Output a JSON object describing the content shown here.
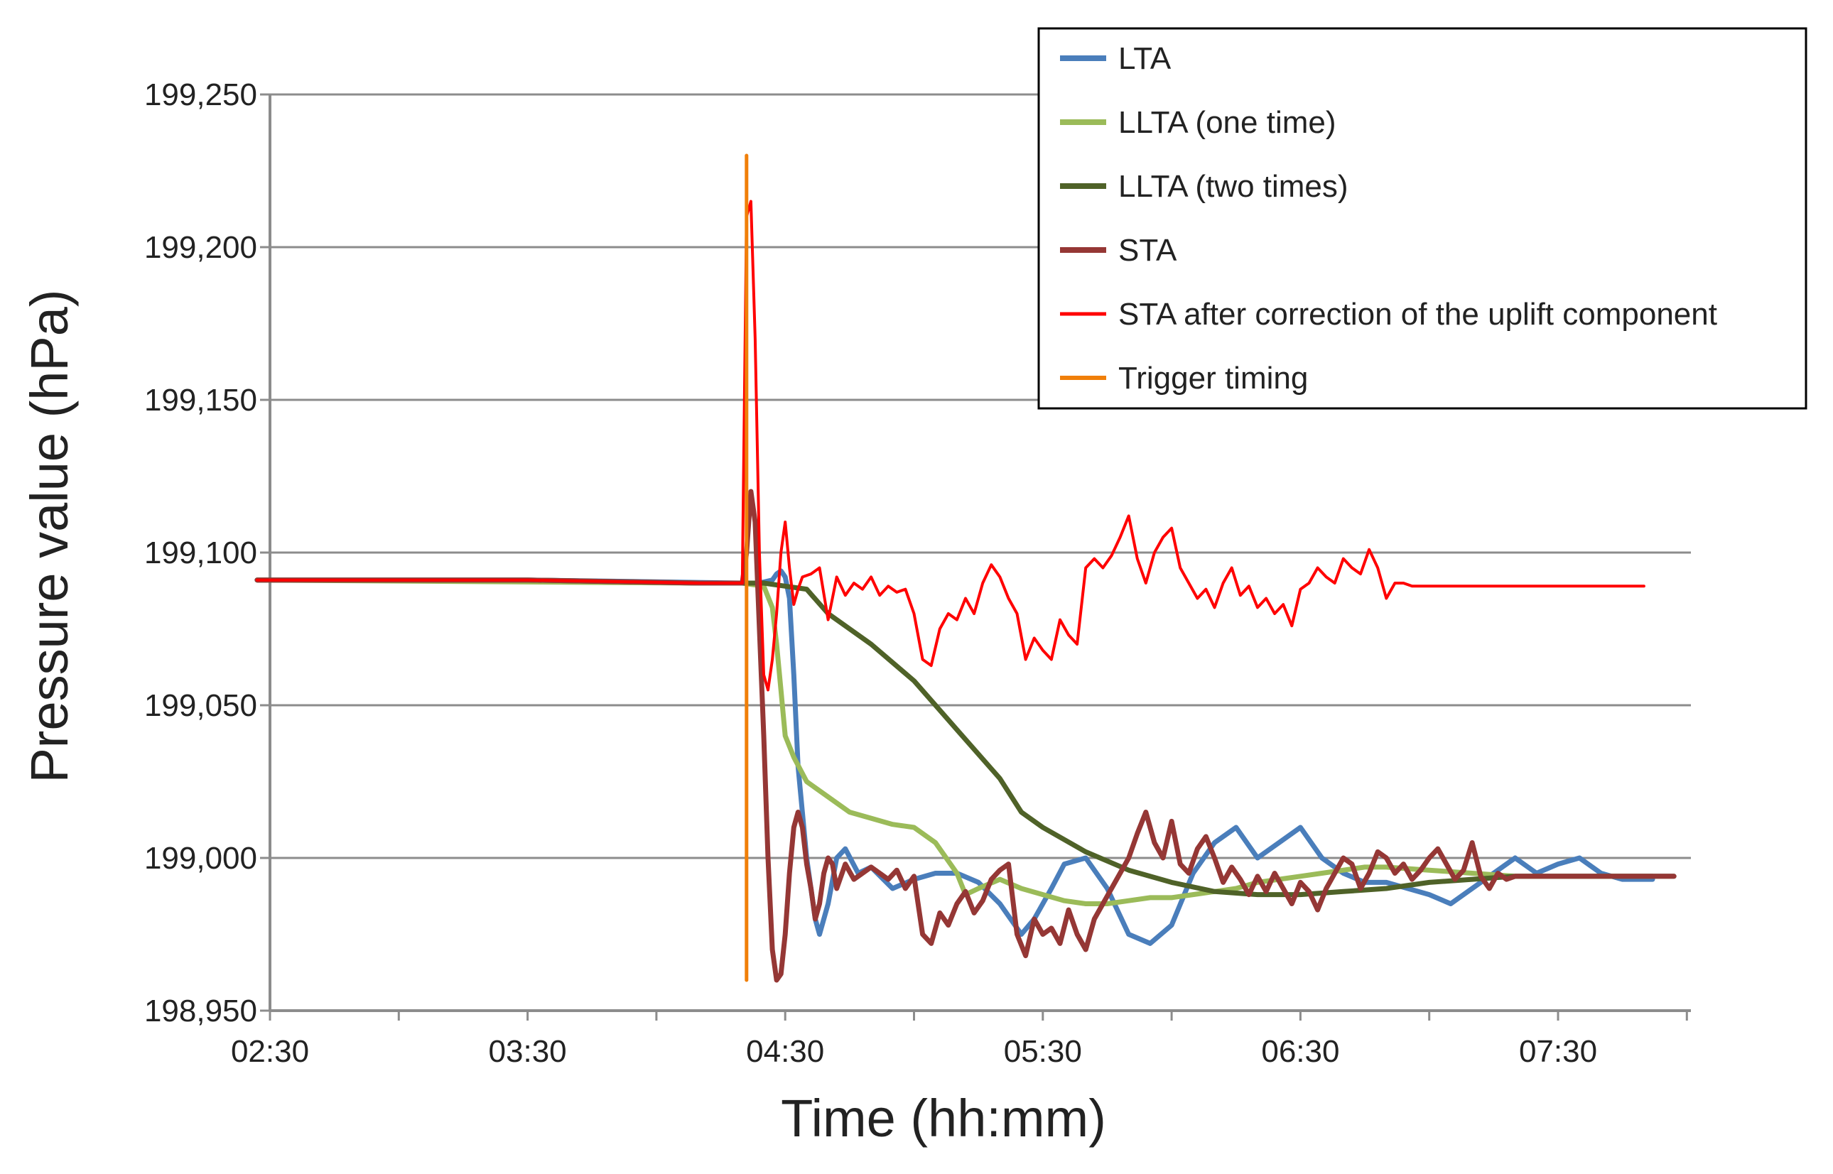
{
  "chart_data": {
    "type": "line",
    "title": "",
    "xlabel": "Time (hh:mm)",
    "ylabel": "Pressure value (hPa)",
    "x_unit": "minutes since 02:30",
    "xlim": [
      0,
      330
    ],
    "ylim": [
      198950,
      199250
    ],
    "grid": true,
    "legend_position": "top-right",
    "x_ticks": [
      {
        "value": 0,
        "label": "02:30"
      },
      {
        "value": 60,
        "label": "03:30"
      },
      {
        "value": 120,
        "label": "04:30"
      },
      {
        "value": 180,
        "label": "05:30"
      },
      {
        "value": 240,
        "label": "06:30"
      },
      {
        "value": 300,
        "label": "07:30"
      }
    ],
    "y_ticks": [
      {
        "value": 198950,
        "label": "198,950"
      },
      {
        "value": 199000,
        "label": "199,000"
      },
      {
        "value": 199050,
        "label": "199,050"
      },
      {
        "value": 199100,
        "label": "199,100"
      },
      {
        "value": 199150,
        "label": "199,150"
      },
      {
        "value": 199200,
        "label": "199,200"
      },
      {
        "value": 199250,
        "label": "199,250"
      }
    ],
    "series": [
      {
        "name": "LTA",
        "color": "#4A7EBB",
        "x": [
          -3,
          60,
          110,
          114,
          117,
          118,
          119,
          120,
          121,
          122,
          123,
          125,
          127,
          128,
          130,
          132,
          134,
          137,
          140,
          145,
          150,
          155,
          160,
          165,
          170,
          175,
          178,
          182,
          185,
          190,
          195,
          200,
          205,
          210,
          215,
          220,
          225,
          230,
          235,
          240,
          245,
          250,
          255,
          260,
          265,
          270,
          275,
          280,
          285,
          290,
          295,
          300,
          305,
          310,
          315,
          322
        ],
        "values": [
          199091,
          199091,
          199090,
          199090,
          199091,
          199093,
          199094,
          199092,
          199085,
          199060,
          199030,
          199000,
          198980,
          198975,
          198985,
          199000,
          199003,
          198995,
          198997,
          198990,
          198993,
          198995,
          198995,
          198992,
          198985,
          198975,
          198980,
          198990,
          198998,
          199000,
          198990,
          198975,
          198972,
          198978,
          198995,
          199005,
          199010,
          199000,
          199005,
          199010,
          199000,
          198995,
          198992,
          198992,
          198990,
          198988,
          198985,
          198990,
          198995,
          199000,
          198995,
          198998,
          199000,
          198995,
          198993,
          198993
        ]
      },
      {
        "name": "LLTA (one time)",
        "color": "#9BBB59",
        "x": [
          -3,
          100,
          110,
          115,
          117,
          118,
          119,
          120,
          122,
          125,
          130,
          135,
          140,
          145,
          150,
          155,
          160,
          162,
          165,
          170,
          175,
          180,
          185,
          190,
          195,
          200,
          205,
          210,
          215,
          220,
          225,
          230,
          235,
          240,
          245,
          250,
          255,
          260,
          270,
          280,
          290,
          300,
          310,
          322
        ],
        "values": [
          199091,
          199090,
          199090,
          199089,
          199082,
          199070,
          199055,
          199040,
          199033,
          199025,
          199020,
          199015,
          199013,
          199011,
          199010,
          199005,
          198995,
          198988,
          198990,
          198993,
          198990,
          198988,
          198986,
          198985,
          198985,
          198986,
          198987,
          198987,
          198988,
          198989,
          198990,
          198992,
          198993,
          198994,
          198995,
          198996,
          198997,
          198997,
          198996,
          198995,
          198994,
          198994,
          198994,
          198994
        ]
      },
      {
        "name": "LLTA (two times)",
        "color": "#4F6228",
        "x": [
          -3,
          60,
          100,
          115,
          120,
          125,
          130,
          140,
          150,
          160,
          170,
          175,
          180,
          190,
          200,
          210,
          220,
          230,
          240,
          250,
          260,
          270,
          280,
          290,
          300,
          310,
          320,
          327
        ],
        "values": [
          199091,
          199091,
          199090,
          199090,
          199089,
          199088,
          199080,
          199070,
          199058,
          199042,
          199026,
          199015,
          199010,
          199002,
          198996,
          198992,
          198989,
          198988,
          198988,
          198989,
          198990,
          198992,
          198993,
          198994,
          198994,
          198994,
          198994,
          198994
        ]
      },
      {
        "name": "STA",
        "color": "#953735",
        "x": [
          -3,
          60,
          100,
          110,
          111,
          112,
          113,
          114,
          115,
          116,
          117,
          118,
          119,
          120,
          121,
          122,
          123,
          124,
          125,
          126,
          127,
          128,
          129,
          130,
          131,
          132,
          134,
          136,
          138,
          140,
          142,
          144,
          146,
          148,
          150,
          152,
          154,
          156,
          158,
          160,
          162,
          164,
          166,
          168,
          170,
          172,
          174,
          176,
          178,
          180,
          182,
          184,
          186,
          188,
          190,
          192,
          194,
          196,
          198,
          200,
          202,
          204,
          206,
          208,
          210,
          212,
          214,
          216,
          218,
          220,
          222,
          224,
          226,
          228,
          230,
          232,
          234,
          236,
          238,
          240,
          242,
          244,
          246,
          248,
          250,
          252,
          254,
          256,
          258,
          260,
          262,
          264,
          266,
          268,
          270,
          272,
          274,
          276,
          278,
          280,
          282,
          284,
          286,
          288,
          290,
          292,
          294,
          296,
          298,
          300,
          305,
          310,
          320,
          327
        ],
        "values": [
          199091,
          199091,
          199090,
          199090,
          199100,
          199120,
          199110,
          199075,
          199040,
          199000,
          198970,
          198960,
          198962,
          198975,
          198995,
          199010,
          199015,
          199010,
          198998,
          198990,
          198980,
          198985,
          198995,
          199000,
          198998,
          198990,
          198998,
          198993,
          198995,
          198997,
          198995,
          198993,
          198996,
          198990,
          198994,
          198975,
          198972,
          198982,
          198978,
          198985,
          198989,
          198982,
          198986,
          198993,
          198996,
          198998,
          198975,
          198968,
          198980,
          198975,
          198977,
          198972,
          198983,
          198975,
          198970,
          198980,
          198985,
          198990,
          198995,
          199000,
          199008,
          199015,
          199005,
          199000,
          199012,
          198998,
          198995,
          199003,
          199007,
          199000,
          198992,
          198997,
          198993,
          198988,
          198994,
          198989,
          198995,
          198990,
          198985,
          198992,
          198989,
          198983,
          198990,
          198995,
          199000,
          198998,
          198990,
          198995,
          199002,
          199000,
          198995,
          198998,
          198993,
          198996,
          199000,
          199003,
          198998,
          198993,
          198996,
          199005,
          198994,
          198990,
          198995,
          198993,
          198994,
          198994,
          198994,
          198994,
          198994,
          198994,
          198994,
          198994,
          198994,
          198994
        ]
      },
      {
        "name": "STA after correction of the uplift component",
        "color": "#FF0000",
        "x": [
          -3,
          60,
          100,
          110,
          110.5,
          111,
          112,
          113,
          114,
          115,
          116,
          117,
          118,
          119,
          120,
          121,
          122,
          123,
          124,
          126,
          128,
          130,
          132,
          134,
          136,
          138,
          140,
          142,
          144,
          146,
          148,
          150,
          152,
          154,
          156,
          158,
          160,
          162,
          164,
          166,
          168,
          170,
          172,
          174,
          176,
          178,
          180,
          182,
          184,
          186,
          188,
          190,
          192,
          194,
          196,
          198,
          200,
          202,
          204,
          206,
          208,
          210,
          212,
          214,
          216,
          218,
          220,
          222,
          224,
          226,
          228,
          230,
          232,
          234,
          236,
          238,
          240,
          242,
          244,
          246,
          248,
          250,
          252,
          254,
          256,
          258,
          260,
          262,
          264,
          266,
          268,
          270,
          272,
          274,
          276,
          278,
          280,
          282,
          285,
          290,
          300,
          310,
          320
        ],
        "values": [
          199091,
          199091,
          199090,
          199090,
          199150,
          199210,
          199215,
          199170,
          199100,
          199060,
          199055,
          199065,
          199080,
          199100,
          199110,
          199095,
          199083,
          199088,
          199092,
          199093,
          199095,
          199078,
          199092,
          199086,
          199090,
          199088,
          199092,
          199086,
          199089,
          199087,
          199088,
          199080,
          199065,
          199063,
          199075,
          199080,
          199078,
          199085,
          199080,
          199090,
          199096,
          199092,
          199085,
          199080,
          199065,
          199072,
          199068,
          199065,
          199078,
          199073,
          199070,
          199095,
          199098,
          199095,
          199099,
          199105,
          199112,
          199098,
          199090,
          199100,
          199105,
          199108,
          199095,
          199090,
          199085,
          199088,
          199082,
          199090,
          199095,
          199086,
          199089,
          199082,
          199085,
          199080,
          199083,
          199076,
          199088,
          199090,
          199095,
          199092,
          199090,
          199098,
          199095,
          199093,
          199101,
          199095,
          199085,
          199090,
          199090,
          199089,
          199089,
          199089,
          199089,
          199089,
          199089,
          199089,
          199089,
          199089,
          199089,
          199089,
          199089,
          199089,
          199089
        ]
      },
      {
        "name": "Trigger timing",
        "color": "#F07F09",
        "x": [
          111,
          111
        ],
        "values": [
          198960,
          199230
        ]
      }
    ]
  }
}
